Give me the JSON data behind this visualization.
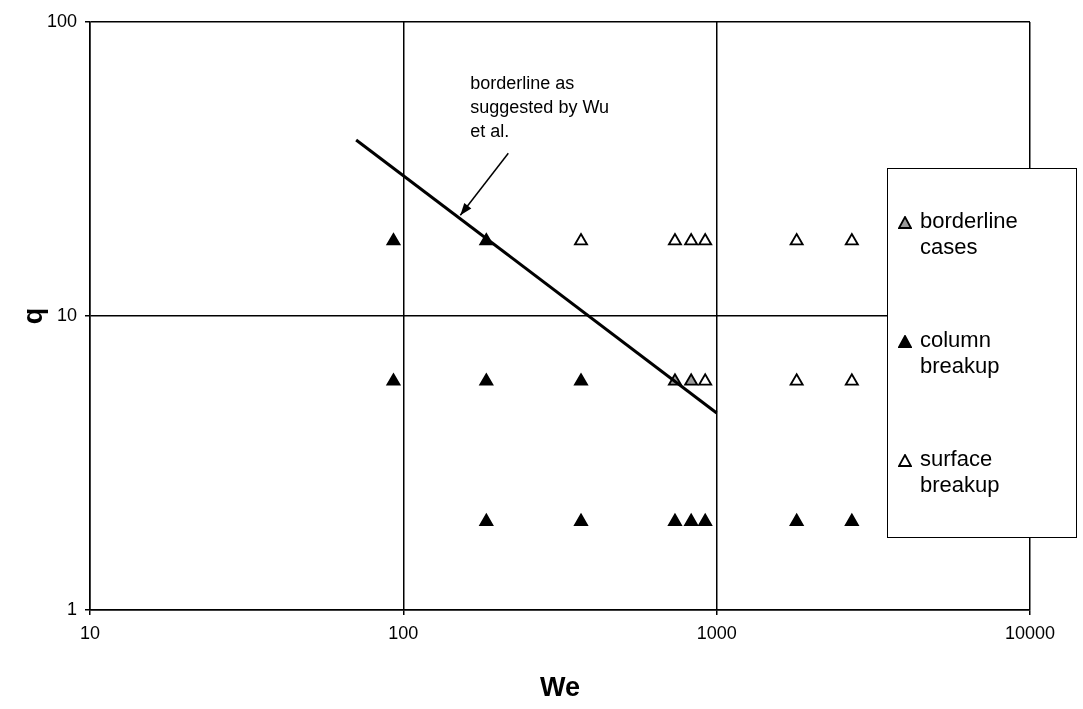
{
  "chart_data": {
    "type": "scatter",
    "xlabel": "We",
    "ylabel": "q",
    "log": "xy",
    "grid": true,
    "legend": "right",
    "marker": "triangle",
    "xlim": [
      10,
      10000
    ],
    "xticks": [
      10,
      100,
      1000,
      10000
    ],
    "ylim": [
      1,
      100
    ],
    "yticks": [
      1,
      10,
      100
    ],
    "annotations": [
      {
        "text": "borderline as suggested by Wu et al.",
        "x": 152,
        "y": 22
      }
    ],
    "series": [
      {
        "name": "borderline cases",
        "color": "#9a9a9a",
        "x": [
          736,
          829
        ],
        "values": [
          6,
          6
        ]
      },
      {
        "name": "column breakup",
        "color": "#000000",
        "x": [
          93,
          184,
          93,
          184,
          369,
          184,
          369,
          736,
          829,
          919,
          1800,
          2700
        ],
        "values": [
          18,
          18,
          6,
          6,
          6,
          2,
          2,
          2,
          2,
          2,
          2,
          2
        ]
      },
      {
        "name": "surface breakup",
        "color": "#ffffff",
        "x": [
          369,
          736,
          829,
          919,
          1800,
          2700,
          919,
          1800,
          2700
        ],
        "values": [
          18,
          18,
          18,
          18,
          18,
          18,
          6,
          6,
          6
        ]
      },
      {
        "type": "line",
        "color": "#000000",
        "x": [
          70.7,
          1000
        ],
        "values": [
          39.7,
          4.68
        ],
        "marker": "none"
      }
    ]
  }
}
